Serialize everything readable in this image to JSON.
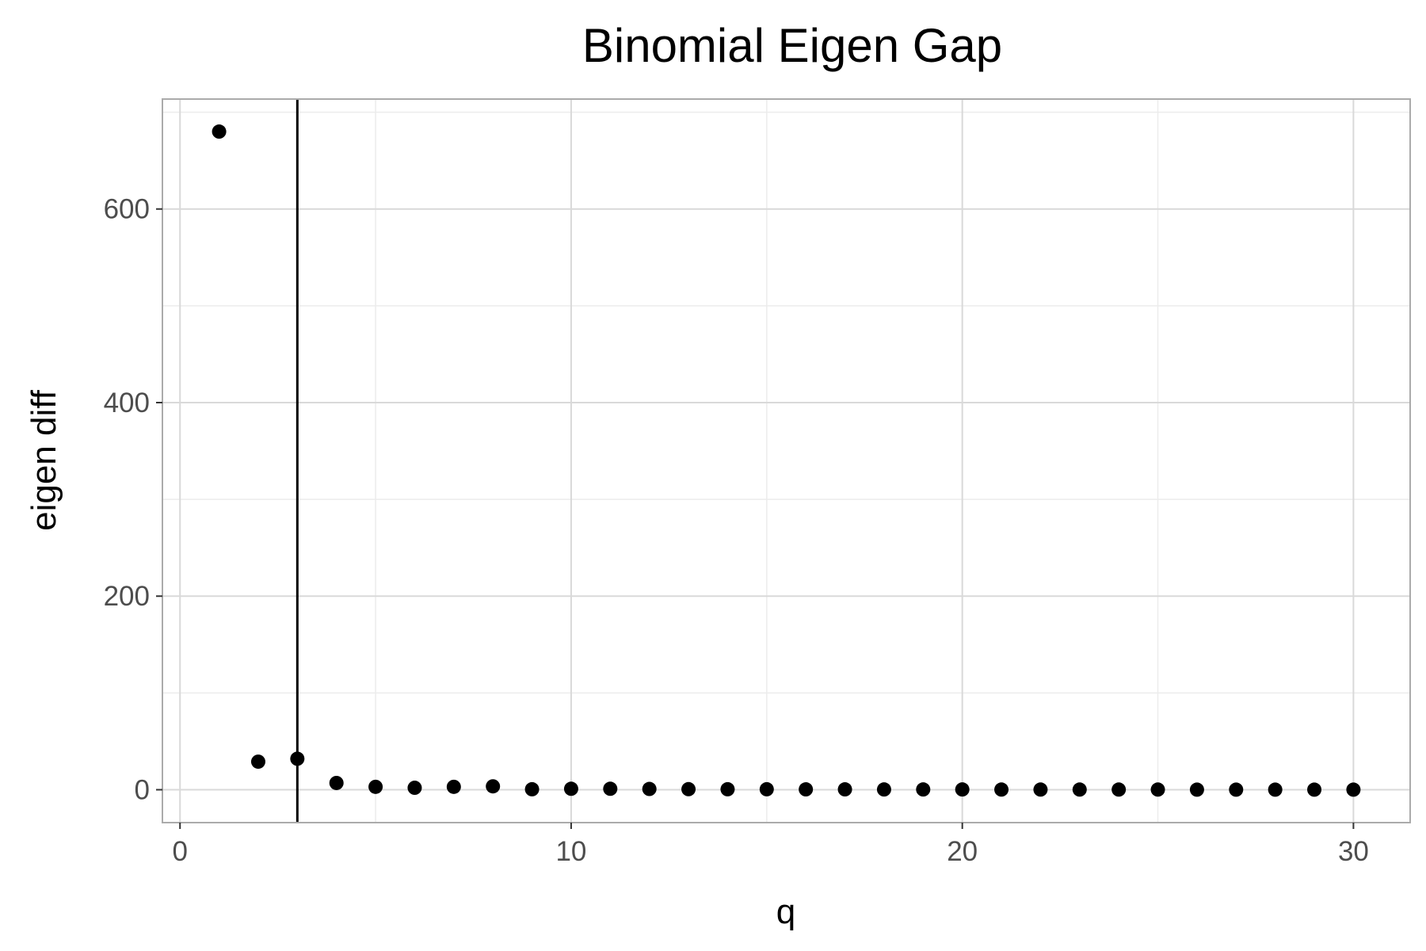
{
  "chart_data": {
    "type": "scatter",
    "title": "Binomial Eigen Gap",
    "xlabel": "q",
    "ylabel": "eigen diff",
    "xlim": [
      -0.45,
      31.45
    ],
    "ylim": [
      -33.98,
      713.6
    ],
    "x_ticks": [
      0,
      10,
      20,
      30
    ],
    "y_ticks": [
      0,
      200,
      400,
      600
    ],
    "x_tick_labels": [
      "0",
      "10",
      "20",
      "30"
    ],
    "y_tick_labels": [
      "0",
      "200",
      "400",
      "600"
    ],
    "grid": true,
    "legend": "none",
    "vline_x": 3,
    "points": [
      {
        "x": 1,
        "y": 680
      },
      {
        "x": 2,
        "y": 29
      },
      {
        "x": 3,
        "y": 32
      },
      {
        "x": 4,
        "y": 7
      },
      {
        "x": 5,
        "y": 3
      },
      {
        "x": 6,
        "y": 2
      },
      {
        "x": 7,
        "y": 3
      },
      {
        "x": 8,
        "y": 3.5
      },
      {
        "x": 9,
        "y": 0.5
      },
      {
        "x": 10,
        "y": 1
      },
      {
        "x": 11,
        "y": 1
      },
      {
        "x": 12,
        "y": 0.8
      },
      {
        "x": 13,
        "y": 0.6
      },
      {
        "x": 14,
        "y": 0.5
      },
      {
        "x": 15,
        "y": 0.5
      },
      {
        "x": 16,
        "y": 0.4
      },
      {
        "x": 17,
        "y": 0.4
      },
      {
        "x": 18,
        "y": 0.3
      },
      {
        "x": 19,
        "y": 0.3
      },
      {
        "x": 20,
        "y": 0.3
      },
      {
        "x": 21,
        "y": 0.2
      },
      {
        "x": 22,
        "y": 0.2
      },
      {
        "x": 23,
        "y": 0.2
      },
      {
        "x": 24,
        "y": 0.2
      },
      {
        "x": 25,
        "y": 0.2
      },
      {
        "x": 26,
        "y": 0.1
      },
      {
        "x": 27,
        "y": 0.1
      },
      {
        "x": 28,
        "y": 0.1
      },
      {
        "x": 29,
        "y": 0.1
      },
      {
        "x": 30,
        "y": 0.1
      }
    ],
    "colors": {
      "points": "#000000",
      "vline": "#000000",
      "grid_major": "#d9d9d9",
      "grid_minor": "#ececec",
      "panel_border": "#ababab",
      "tick_text": "#4d4d4d"
    }
  }
}
